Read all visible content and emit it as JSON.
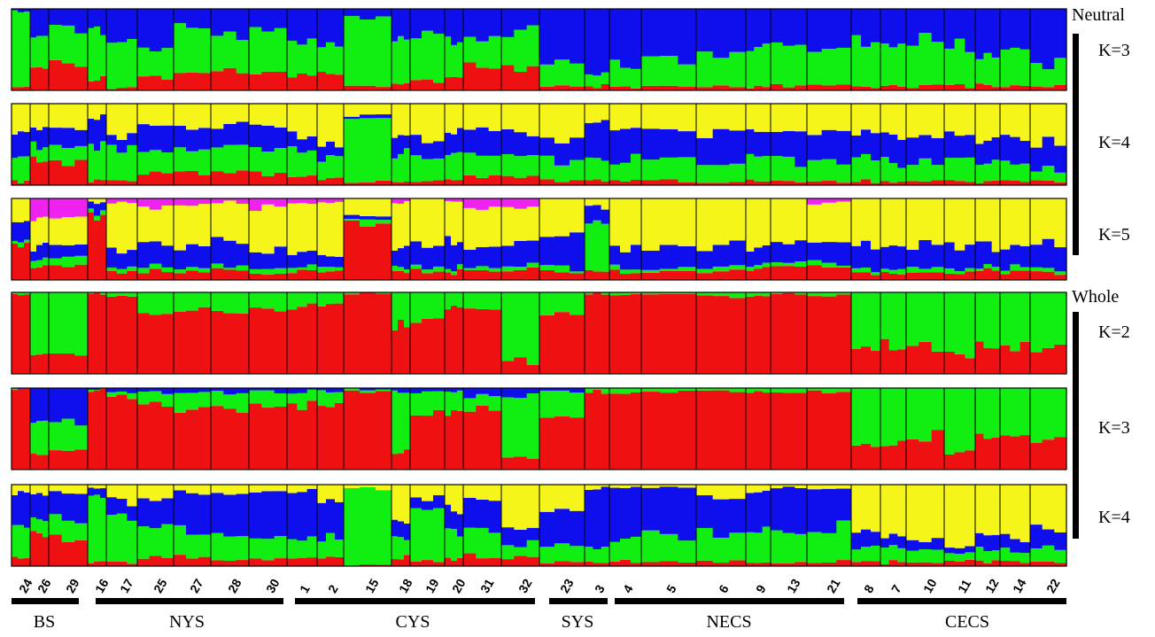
{
  "chart_data": {
    "type": "stacked-bar",
    "colors": {
      "red": "#ef1111",
      "green": "#11ee11",
      "blue": "#0f0fee",
      "yellow": "#f5f51a",
      "magenta": "#ef22ef"
    },
    "populations": [
      "24",
      "26",
      "29",
      "16",
      "17",
      "25",
      "27",
      "28",
      "30",
      "1",
      "2",
      "15",
      "18",
      "19",
      "20",
      "31",
      "32",
      "23",
      "3",
      "4",
      "5",
      "6",
      "9",
      "13",
      "21",
      "8",
      "7",
      "10",
      "11",
      "12",
      "14",
      "22"
    ],
    "regions": [
      {
        "name": "BS",
        "populations": [
          "24",
          "26",
          "29"
        ]
      },
      {
        "name": "NYS",
        "populations": [
          "16",
          "17",
          "25",
          "27",
          "28",
          "30"
        ]
      },
      {
        "name": "CYS",
        "populations": [
          "1",
          "2",
          "15",
          "18",
          "19",
          "20",
          "31",
          "32"
        ]
      },
      {
        "name": "SYS",
        "populations": [
          "23",
          "3"
        ]
      },
      {
        "name": "NECS",
        "populations": [
          "4",
          "5",
          "6",
          "9",
          "13",
          "21"
        ]
      },
      {
        "name": "CECS",
        "populations": [
          "8",
          "7",
          "10",
          "11",
          "12",
          "14",
          "22"
        ]
      }
    ],
    "groups": [
      {
        "name": "Neutral",
        "panels": [
          "K=3",
          "K=4",
          "K=5"
        ]
      },
      {
        "name": "Whole",
        "panels": [
          "K=2",
          "K=3",
          "K=4"
        ]
      }
    ],
    "panels": [
      {
        "group": "Neutral",
        "label": "K=3",
        "order": [
          "red",
          "green",
          "blue"
        ],
        "membership": [
          [
            0.02,
            0.95,
            0.03
          ],
          [
            0.32,
            0.38,
            0.3
          ],
          [
            0.3,
            0.42,
            0.28
          ],
          [
            0.15,
            0.6,
            0.25
          ],
          [
            0.03,
            0.6,
            0.37
          ],
          [
            0.15,
            0.4,
            0.45
          ],
          [
            0.2,
            0.55,
            0.25
          ],
          [
            0.28,
            0.4,
            0.32
          ],
          [
            0.22,
            0.5,
            0.28
          ],
          [
            0.2,
            0.4,
            0.4
          ],
          [
            0.22,
            0.35,
            0.43
          ],
          [
            0.05,
            0.85,
            0.1
          ],
          [
            0.08,
            0.52,
            0.4
          ],
          [
            0.1,
            0.55,
            0.35
          ],
          [
            0.2,
            0.4,
            0.4
          ],
          [
            0.3,
            0.38,
            0.32
          ],
          [
            0.25,
            0.45,
            0.3
          ],
          [
            0.05,
            0.3,
            0.65
          ],
          [
            0.05,
            0.18,
            0.77
          ],
          [
            0.05,
            0.28,
            0.67
          ],
          [
            0.05,
            0.32,
            0.63
          ],
          [
            0.05,
            0.4,
            0.55
          ],
          [
            0.05,
            0.55,
            0.4
          ],
          [
            0.05,
            0.5,
            0.45
          ],
          [
            0.05,
            0.42,
            0.53
          ],
          [
            0.05,
            0.55,
            0.4
          ],
          [
            0.05,
            0.5,
            0.45
          ],
          [
            0.05,
            0.55,
            0.4
          ],
          [
            0.05,
            0.48,
            0.47
          ],
          [
            0.05,
            0.32,
            0.63
          ],
          [
            0.05,
            0.45,
            0.5
          ],
          [
            0.05,
            0.25,
            0.7
          ]
        ]
      },
      {
        "group": "Neutral",
        "label": "K=4",
        "order": [
          "red",
          "green",
          "blue",
          "yellow"
        ],
        "membership": [
          [
            0.05,
            0.3,
            0.25,
            0.4
          ],
          [
            0.3,
            0.2,
            0.22,
            0.28
          ],
          [
            0.3,
            0.18,
            0.22,
            0.3
          ],
          [
            0.05,
            0.4,
            0.35,
            0.2
          ],
          [
            0.05,
            0.4,
            0.15,
            0.4
          ],
          [
            0.15,
            0.25,
            0.3,
            0.3
          ],
          [
            0.15,
            0.3,
            0.25,
            0.3
          ],
          [
            0.15,
            0.3,
            0.25,
            0.3
          ],
          [
            0.15,
            0.3,
            0.25,
            0.3
          ],
          [
            0.1,
            0.3,
            0.2,
            0.4
          ],
          [
            0.1,
            0.25,
            0.15,
            0.5
          ],
          [
            0.05,
            0.75,
            0.05,
            0.15
          ],
          [
            0.05,
            0.35,
            0.2,
            0.4
          ],
          [
            0.05,
            0.3,
            0.2,
            0.45
          ],
          [
            0.05,
            0.3,
            0.3,
            0.35
          ],
          [
            0.1,
            0.25,
            0.3,
            0.35
          ],
          [
            0.1,
            0.25,
            0.25,
            0.4
          ],
          [
            0.05,
            0.25,
            0.25,
            0.45
          ],
          [
            0.05,
            0.25,
            0.5,
            0.2
          ],
          [
            0.05,
            0.25,
            0.4,
            0.3
          ],
          [
            0.05,
            0.25,
            0.35,
            0.35
          ],
          [
            0.05,
            0.25,
            0.35,
            0.35
          ],
          [
            0.05,
            0.3,
            0.3,
            0.35
          ],
          [
            0.05,
            0.25,
            0.35,
            0.35
          ],
          [
            0.05,
            0.25,
            0.35,
            0.35
          ],
          [
            0.05,
            0.25,
            0.3,
            0.4
          ],
          [
            0.05,
            0.25,
            0.3,
            0.4
          ],
          [
            0.05,
            0.25,
            0.3,
            0.4
          ],
          [
            0.05,
            0.25,
            0.3,
            0.4
          ],
          [
            0.05,
            0.25,
            0.3,
            0.4
          ],
          [
            0.05,
            0.25,
            0.3,
            0.4
          ],
          [
            0.05,
            0.15,
            0.3,
            0.5
          ]
        ]
      },
      {
        "group": "Neutral",
        "label": "K=5",
        "order": [
          "red",
          "green",
          "blue",
          "yellow",
          "magenta"
        ],
        "membership": [
          [
            0.4,
            0.05,
            0.25,
            0.3,
            0.0
          ],
          [
            0.15,
            0.1,
            0.15,
            0.35,
            0.25
          ],
          [
            0.15,
            0.1,
            0.15,
            0.35,
            0.25
          ],
          [
            0.8,
            0.05,
            0.1,
            0.05,
            0.0
          ],
          [
            0.1,
            0.05,
            0.2,
            0.6,
            0.05
          ],
          [
            0.1,
            0.05,
            0.3,
            0.45,
            0.1
          ],
          [
            0.1,
            0.05,
            0.25,
            0.5,
            0.1
          ],
          [
            0.15,
            0.05,
            0.3,
            0.45,
            0.05
          ],
          [
            0.1,
            0.05,
            0.2,
            0.55,
            0.1
          ],
          [
            0.1,
            0.05,
            0.2,
            0.6,
            0.05
          ],
          [
            0.1,
            0.05,
            0.15,
            0.65,
            0.05
          ],
          [
            0.7,
            0.05,
            0.05,
            0.2,
            0.0
          ],
          [
            0.1,
            0.05,
            0.25,
            0.55,
            0.05
          ],
          [
            0.1,
            0.05,
            0.25,
            0.6,
            0.0
          ],
          [
            0.1,
            0.05,
            0.3,
            0.5,
            0.05
          ],
          [
            0.1,
            0.05,
            0.25,
            0.5,
            0.1
          ],
          [
            0.1,
            0.05,
            0.3,
            0.45,
            0.1
          ],
          [
            0.1,
            0.05,
            0.45,
            0.4,
            0.0
          ],
          [
            0.1,
            0.6,
            0.2,
            0.1,
            0.0
          ],
          [
            0.1,
            0.05,
            0.25,
            0.6,
            0.0
          ],
          [
            0.1,
            0.05,
            0.25,
            0.6,
            0.0
          ],
          [
            0.1,
            0.05,
            0.3,
            0.55,
            0.0
          ],
          [
            0.15,
            0.05,
            0.2,
            0.6,
            0.0
          ],
          [
            0.15,
            0.05,
            0.25,
            0.55,
            0.0
          ],
          [
            0.15,
            0.05,
            0.25,
            0.5,
            0.05
          ],
          [
            0.1,
            0.05,
            0.3,
            0.55,
            0.0
          ],
          [
            0.1,
            0.05,
            0.3,
            0.55,
            0.0
          ],
          [
            0.1,
            0.05,
            0.3,
            0.55,
            0.0
          ],
          [
            0.1,
            0.05,
            0.3,
            0.55,
            0.0
          ],
          [
            0.1,
            0.05,
            0.25,
            0.6,
            0.0
          ],
          [
            0.1,
            0.05,
            0.25,
            0.6,
            0.0
          ],
          [
            0.1,
            0.05,
            0.3,
            0.55,
            0.0
          ]
        ]
      },
      {
        "group": "Whole",
        "label": "K=2",
        "order": [
          "red",
          "green"
        ],
        "membership": [
          [
            0.98,
            0.02
          ],
          [
            0.3,
            0.7
          ],
          [
            0.25,
            0.75
          ],
          [
            0.98,
            0.02
          ],
          [
            0.95,
            0.05
          ],
          [
            0.75,
            0.25
          ],
          [
            0.8,
            0.2
          ],
          [
            0.75,
            0.25
          ],
          [
            0.8,
            0.2
          ],
          [
            0.8,
            0.2
          ],
          [
            0.85,
            0.15
          ],
          [
            0.98,
            0.02
          ],
          [
            0.55,
            0.45
          ],
          [
            0.65,
            0.35
          ],
          [
            0.8,
            0.2
          ],
          [
            0.8,
            0.2
          ],
          [
            0.15,
            0.85
          ],
          [
            0.75,
            0.25
          ],
          [
            0.98,
            0.02
          ],
          [
            0.98,
            0.02
          ],
          [
            0.98,
            0.02
          ],
          [
            0.95,
            0.05
          ],
          [
            0.95,
            0.05
          ],
          [
            0.98,
            0.02
          ],
          [
            0.95,
            0.05
          ],
          [
            0.3,
            0.7
          ],
          [
            0.35,
            0.65
          ],
          [
            0.35,
            0.65
          ],
          [
            0.25,
            0.75
          ],
          [
            0.35,
            0.65
          ],
          [
            0.35,
            0.65
          ],
          [
            0.3,
            0.7
          ]
        ]
      },
      {
        "group": "Whole",
        "label": "K=3",
        "order": [
          "red",
          "green",
          "blue"
        ],
        "membership": [
          [
            0.98,
            0.01,
            0.01
          ],
          [
            0.2,
            0.4,
            0.4
          ],
          [
            0.25,
            0.35,
            0.4
          ],
          [
            0.98,
            0.01,
            0.01
          ],
          [
            0.9,
            0.05,
            0.05
          ],
          [
            0.8,
            0.15,
            0.05
          ],
          [
            0.75,
            0.2,
            0.05
          ],
          [
            0.75,
            0.2,
            0.05
          ],
          [
            0.75,
            0.2,
            0.05
          ],
          [
            0.8,
            0.15,
            0.05
          ],
          [
            0.8,
            0.15,
            0.05
          ],
          [
            0.95,
            0.03,
            0.02
          ],
          [
            0.25,
            0.7,
            0.05
          ],
          [
            0.7,
            0.25,
            0.05
          ],
          [
            0.7,
            0.25,
            0.05
          ],
          [
            0.75,
            0.15,
            0.1
          ],
          [
            0.15,
            0.75,
            0.1
          ],
          [
            0.6,
            0.35,
            0.05
          ],
          [
            0.95,
            0.05,
            0.0
          ],
          [
            0.95,
            0.05,
            0.0
          ],
          [
            0.95,
            0.05,
            0.0
          ],
          [
            0.95,
            0.05,
            0.0
          ],
          [
            0.95,
            0.05,
            0.0
          ],
          [
            0.95,
            0.05,
            0.0
          ],
          [
            0.95,
            0.05,
            0.0
          ],
          [
            0.3,
            0.7,
            0.0
          ],
          [
            0.35,
            0.65,
            0.0
          ],
          [
            0.4,
            0.6,
            0.0
          ],
          [
            0.25,
            0.75,
            0.0
          ],
          [
            0.4,
            0.6,
            0.0
          ],
          [
            0.4,
            0.6,
            0.0
          ],
          [
            0.35,
            0.65,
            0.0
          ]
        ]
      },
      {
        "group": "Whole",
        "label": "K=4",
        "order": [
          "red",
          "green",
          "blue",
          "yellow"
        ],
        "membership": [
          [
            0.1,
            0.4,
            0.4,
            0.1
          ],
          [
            0.4,
            0.2,
            0.3,
            0.1
          ],
          [
            0.35,
            0.25,
            0.3,
            0.1
          ],
          [
            0.05,
            0.8,
            0.1,
            0.05
          ],
          [
            0.05,
            0.55,
            0.2,
            0.2
          ],
          [
            0.1,
            0.4,
            0.3,
            0.2
          ],
          [
            0.1,
            0.3,
            0.5,
            0.1
          ],
          [
            0.1,
            0.3,
            0.5,
            0.1
          ],
          [
            0.1,
            0.25,
            0.55,
            0.1
          ],
          [
            0.1,
            0.25,
            0.55,
            0.1
          ],
          [
            0.1,
            0.25,
            0.45,
            0.2
          ],
          [
            0.02,
            0.93,
            0.0,
            0.05
          ],
          [
            0.1,
            0.25,
            0.2,
            0.45
          ],
          [
            0.05,
            0.65,
            0.15,
            0.15
          ],
          [
            0.1,
            0.35,
            0.25,
            0.3
          ],
          [
            0.1,
            0.35,
            0.4,
            0.15
          ],
          [
            0.1,
            0.15,
            0.2,
            0.55
          ],
          [
            0.05,
            0.2,
            0.4,
            0.35
          ],
          [
            0.05,
            0.2,
            0.7,
            0.05
          ],
          [
            0.05,
            0.3,
            0.6,
            0.05
          ],
          [
            0.05,
            0.35,
            0.55,
            0.05
          ],
          [
            0.05,
            0.35,
            0.45,
            0.15
          ],
          [
            0.05,
            0.4,
            0.45,
            0.1
          ],
          [
            0.05,
            0.35,
            0.55,
            0.05
          ],
          [
            0.05,
            0.4,
            0.5,
            0.05
          ],
          [
            0.05,
            0.2,
            0.2,
            0.55
          ],
          [
            0.05,
            0.2,
            0.15,
            0.6
          ],
          [
            0.05,
            0.15,
            0.1,
            0.7
          ],
          [
            0.05,
            0.1,
            0.1,
            0.75
          ],
          [
            0.05,
            0.15,
            0.15,
            0.65
          ],
          [
            0.05,
            0.15,
            0.15,
            0.65
          ],
          [
            0.05,
            0.15,
            0.25,
            0.55
          ]
        ]
      }
    ]
  }
}
